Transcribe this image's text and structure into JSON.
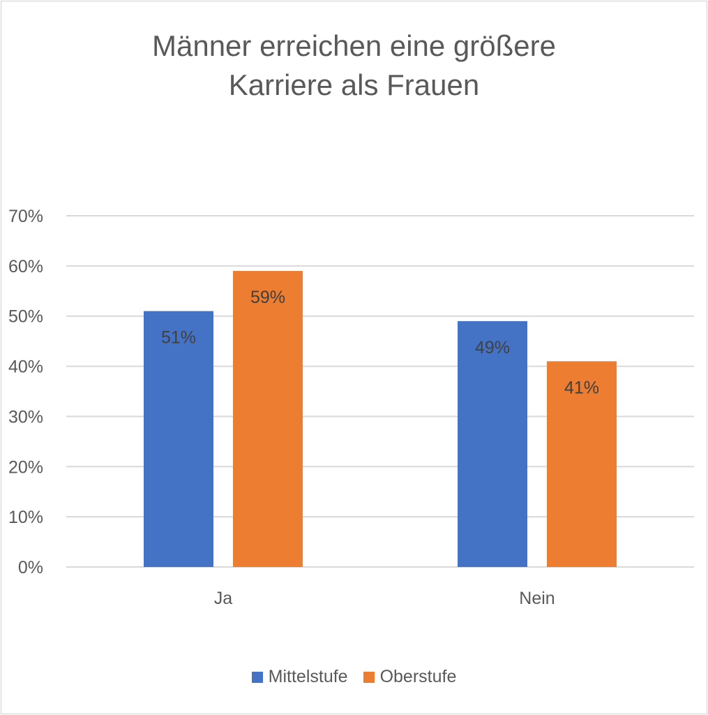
{
  "chart_data": {
    "type": "bar",
    "title_lines": [
      "Männer erreichen eine größere",
      "Karriere als Frauen"
    ],
    "categories": [
      "Ja",
      "Nein"
    ],
    "series": [
      {
        "name": "Mittelstufe",
        "color": "#4472c4",
        "values": [
          51,
          49
        ],
        "labels": [
          "51%",
          "49%"
        ]
      },
      {
        "name": "Oberstufe",
        "color": "#ed7d31",
        "values": [
          59,
          41
        ],
        "labels": [
          "59%",
          "41%"
        ]
      }
    ],
    "yticks": [
      "0%",
      "10%",
      "20%",
      "30%",
      "40%",
      "50%",
      "60%",
      "70%"
    ],
    "ylim": [
      0,
      70
    ],
    "grid": true,
    "legend": "bottom",
    "xlabel": "",
    "ylabel": ""
  }
}
